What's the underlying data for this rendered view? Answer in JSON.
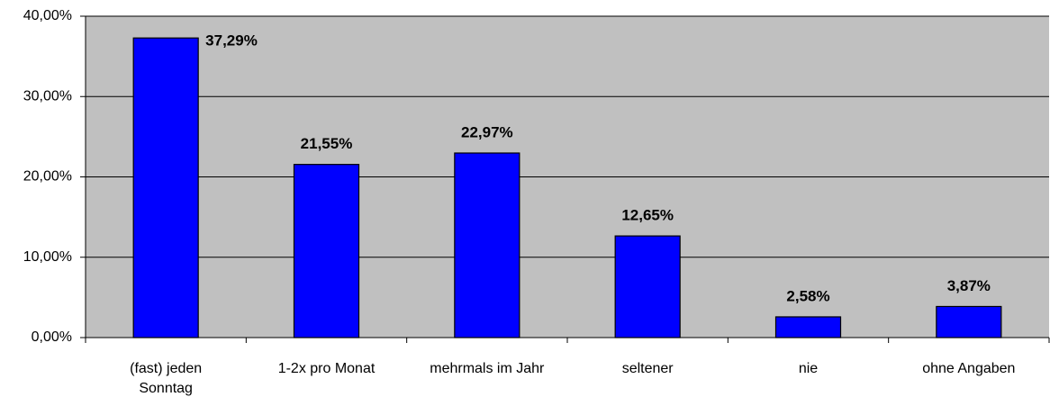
{
  "chart_data": {
    "type": "bar",
    "categories": [
      "(fast) jeden Sonntag",
      "1-2x pro Monat",
      "mehrmals im Jahr",
      "seltener",
      "nie",
      "ohne Angaben"
    ],
    "values": [
      37.29,
      21.55,
      22.97,
      12.65,
      2.58,
      3.87
    ],
    "value_labels": [
      "37,29%",
      "21,55%",
      "22,97%",
      "12,65%",
      "2,58%",
      "3,87%"
    ],
    "color": "#0000ff",
    "ylim": [
      0,
      40
    ],
    "yticks": [
      {
        "value": 0,
        "label": "0,00%"
      },
      {
        "value": 10,
        "label": "10,00%"
      },
      {
        "value": 20,
        "label": "20,00%"
      },
      {
        "value": 30,
        "label": "30,00%"
      },
      {
        "value": 40,
        "label": "40,00%"
      }
    ],
    "grid": true
  }
}
